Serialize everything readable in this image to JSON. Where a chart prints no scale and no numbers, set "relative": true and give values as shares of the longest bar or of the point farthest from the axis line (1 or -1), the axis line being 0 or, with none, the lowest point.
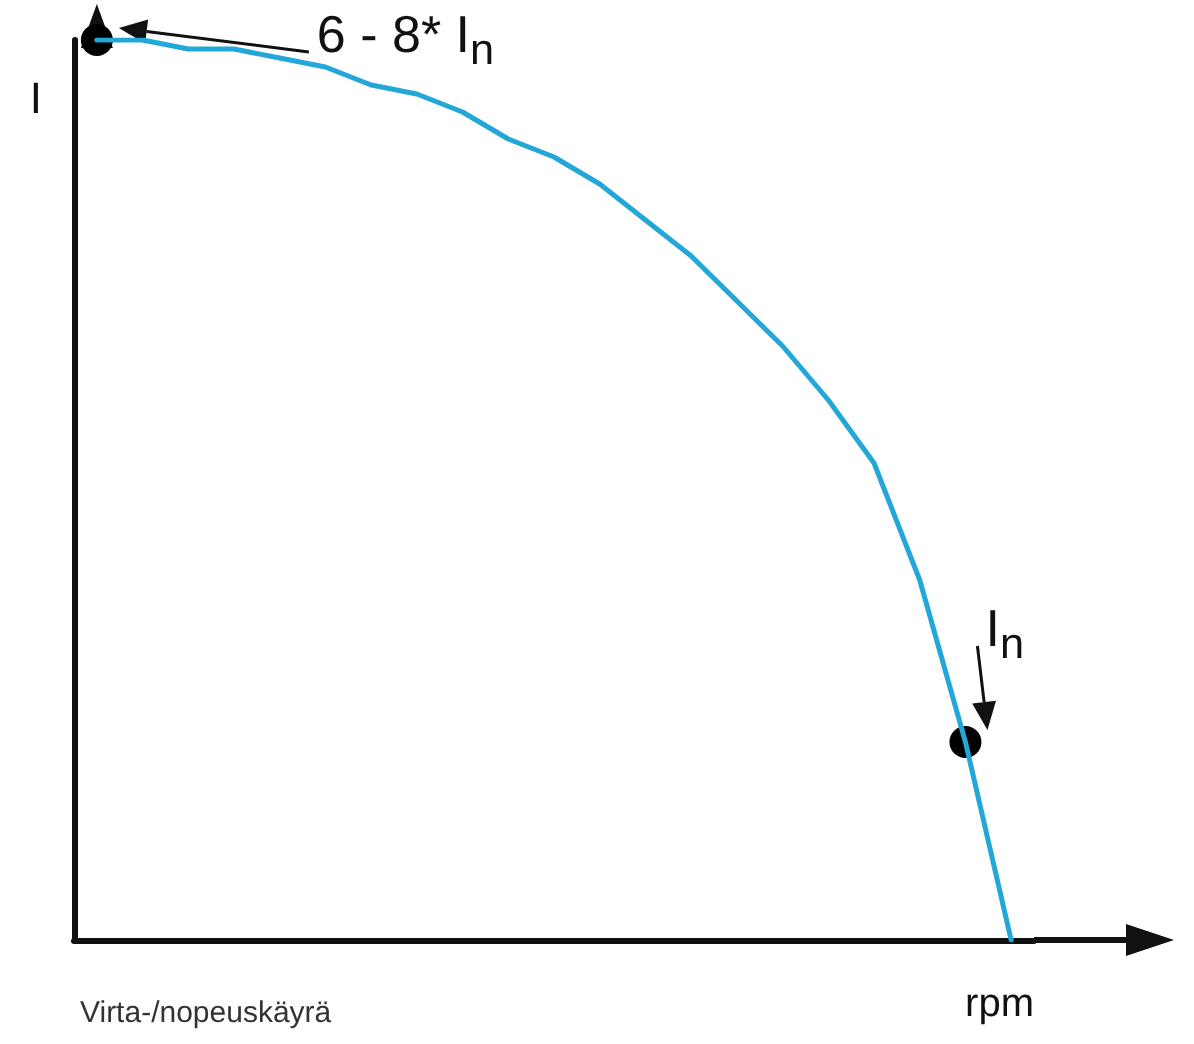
{
  "chart_data": {
    "type": "line",
    "relative": true,
    "ylabel": "I",
    "xlabel": "rpm",
    "grid": false,
    "categories": [
      null,
      null,
      null,
      null,
      null,
      null,
      null,
      null,
      null,
      null,
      null,
      null,
      null,
      null,
      null,
      null,
      null,
      null,
      null,
      null,
      null
    ],
    "series": [
      {
        "color": "#22a7d8",
        "values": [
          1,
          1,
          0.99,
          0.99,
          0.98,
          0.97,
          0.95,
          0.94,
          0.92,
          0.89,
          0.87,
          0.84,
          0.8,
          0.76,
          0.71,
          0.66,
          0.6,
          0.53,
          0.4,
          0.22,
          0
        ]
      }
    ],
    "annotations": [
      "6 - 8* I$_{n}$",
      "I$_{n}$",
      "Virta-/nopeuskäyrä"
    ]
  }
}
